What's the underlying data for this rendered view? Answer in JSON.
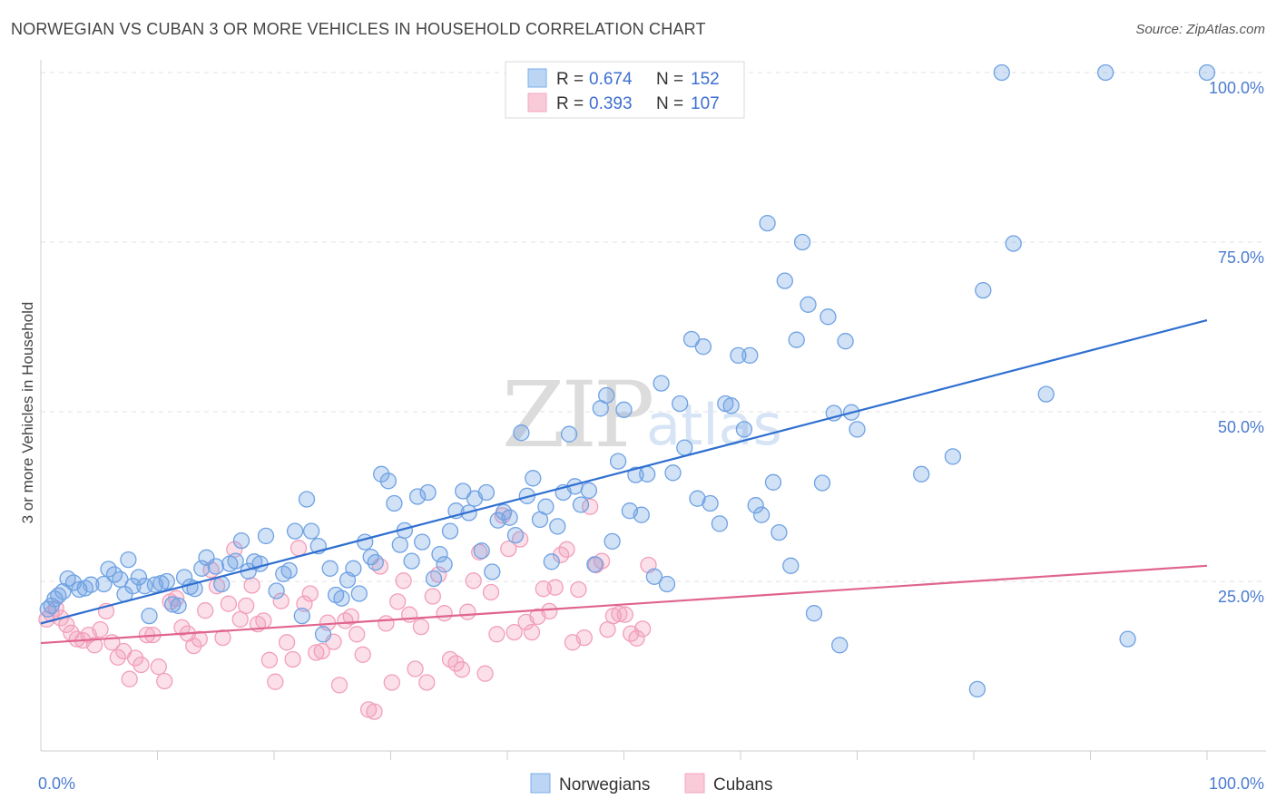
{
  "header": {
    "title": "NORWEGIAN VS CUBAN 3 OR MORE VEHICLES IN HOUSEHOLD CORRELATION CHART",
    "source": "Source: ZipAtlas.com"
  },
  "watermark": {
    "zip": "ZIP",
    "atlas": "atlas"
  },
  "legend": {
    "rows": [
      {
        "r_label": "R =",
        "r_value": "0.674",
        "n_label": "N =",
        "n_value": "152",
        "color": "#7aaee8"
      },
      {
        "r_label": "R =",
        "r_value": "0.393",
        "n_label": "N =",
        "n_value": "107",
        "color": "#f4a6bf"
      }
    ]
  },
  "bottom_legend": [
    {
      "label": "Norwegians",
      "color": "#7aaee8"
    },
    {
      "label": "Cubans",
      "color": "#f4a6bf"
    }
  ],
  "chart_data": {
    "type": "scatter",
    "title": "NORWEGIAN VS CUBAN 3 OR MORE VEHICLES IN HOUSEHOLD CORRELATION CHART",
    "xlabel": "",
    "ylabel": "3 or more Vehicles in Household",
    "xlim": [
      0,
      100
    ],
    "ylim": [
      0,
      100
    ],
    "x_tick_labels": [
      "0.0%",
      "100.0%"
    ],
    "y_ticks": [
      25,
      50,
      75,
      100
    ],
    "y_tick_labels": [
      "25.0%",
      "50.0%",
      "75.0%",
      "100.0%"
    ],
    "grid": true,
    "series": [
      {
        "name": "Norwegians",
        "color": "#6fa2e3",
        "line_color": "#2f6fd0",
        "trend": [
          [
            0,
            18.8
          ],
          [
            100,
            63.5
          ]
        ],
        "points": [
          [
            0.6,
            20.9
          ],
          [
            0.9,
            21.4
          ],
          [
            1.2,
            22.4
          ],
          [
            1.5,
            22.9
          ],
          [
            1.9,
            23.5
          ],
          [
            2.3,
            25.4
          ],
          [
            2.8,
            24.8
          ],
          [
            3.3,
            23.8
          ],
          [
            3.8,
            24.0
          ],
          [
            4.3,
            24.5
          ],
          [
            5.4,
            24.6
          ],
          [
            5.8,
            26.8
          ],
          [
            6.3,
            26.0
          ],
          [
            6.8,
            25.3
          ],
          [
            7.2,
            23.1
          ],
          [
            7.5,
            28.2
          ],
          [
            7.9,
            24.3
          ],
          [
            8.4,
            25.6
          ],
          [
            8.9,
            24.3
          ],
          [
            9.3,
            19.9
          ],
          [
            9.8,
            24.5
          ],
          [
            10.3,
            24.7
          ],
          [
            10.8,
            25.0
          ],
          [
            11.3,
            21.6
          ],
          [
            11.8,
            21.4
          ],
          [
            12.3,
            25.6
          ],
          [
            12.8,
            24.2
          ],
          [
            13.2,
            23.9
          ],
          [
            13.8,
            26.9
          ],
          [
            14.2,
            28.5
          ],
          [
            15.0,
            27.2
          ],
          [
            15.5,
            24.6
          ],
          [
            16.2,
            27.6
          ],
          [
            16.7,
            28.0
          ],
          [
            17.2,
            31.0
          ],
          [
            17.8,
            26.5
          ],
          [
            18.3,
            27.9
          ],
          [
            18.8,
            27.6
          ],
          [
            19.3,
            31.7
          ],
          [
            20.2,
            23.6
          ],
          [
            20.8,
            26.1
          ],
          [
            21.3,
            26.6
          ],
          [
            21.8,
            32.4
          ],
          [
            22.4,
            19.9
          ],
          [
            22.8,
            37.1
          ],
          [
            23.2,
            32.4
          ],
          [
            23.8,
            30.2
          ],
          [
            24.2,
            17.2
          ],
          [
            24.8,
            26.9
          ],
          [
            25.3,
            23.0
          ],
          [
            25.8,
            22.5
          ],
          [
            26.3,
            25.2
          ],
          [
            26.8,
            26.9
          ],
          [
            27.3,
            23.2
          ],
          [
            27.8,
            30.8
          ],
          [
            28.3,
            28.6
          ],
          [
            28.7,
            27.8
          ],
          [
            29.2,
            40.8
          ],
          [
            29.8,
            39.8
          ],
          [
            30.3,
            36.5
          ],
          [
            30.8,
            30.4
          ],
          [
            31.2,
            32.5
          ],
          [
            31.8,
            28.0
          ],
          [
            32.3,
            37.5
          ],
          [
            32.7,
            30.8
          ],
          [
            33.2,
            38.1
          ],
          [
            33.7,
            25.4
          ],
          [
            34.2,
            29.0
          ],
          [
            34.6,
            27.5
          ],
          [
            35.1,
            32.4
          ],
          [
            35.6,
            35.4
          ],
          [
            36.2,
            38.3
          ],
          [
            36.7,
            35.1
          ],
          [
            37.2,
            37.2
          ],
          [
            37.8,
            29.5
          ],
          [
            38.2,
            38.1
          ],
          [
            38.7,
            26.4
          ],
          [
            39.2,
            34.0
          ],
          [
            39.7,
            35.2
          ],
          [
            40.2,
            34.4
          ],
          [
            40.7,
            31.8
          ],
          [
            41.2,
            46.9
          ],
          [
            41.7,
            37.6
          ],
          [
            42.2,
            40.2
          ],
          [
            42.8,
            34.1
          ],
          [
            43.3,
            36.0
          ],
          [
            43.8,
            27.9
          ],
          [
            44.3,
            33.1
          ],
          [
            44.8,
            38.1
          ],
          [
            45.3,
            46.7
          ],
          [
            45.8,
            39.0
          ],
          [
            46.3,
            36.3
          ],
          [
            47.0,
            38.4
          ],
          [
            47.5,
            27.5
          ],
          [
            48.0,
            50.5
          ],
          [
            48.5,
            52.4
          ],
          [
            49.0,
            30.9
          ],
          [
            49.5,
            42.7
          ],
          [
            50.0,
            50.3
          ],
          [
            50.5,
            35.4
          ],
          [
            51.0,
            40.7
          ],
          [
            51.5,
            34.8
          ],
          [
            52.0,
            40.8
          ],
          [
            52.6,
            25.7
          ],
          [
            53.2,
            54.2
          ],
          [
            53.7,
            24.6
          ],
          [
            54.2,
            41.0
          ],
          [
            54.8,
            51.2
          ],
          [
            55.2,
            44.7
          ],
          [
            55.8,
            60.7
          ],
          [
            56.3,
            37.2
          ],
          [
            56.8,
            59.6
          ],
          [
            57.4,
            36.5
          ],
          [
            58.2,
            33.5
          ],
          [
            58.7,
            51.2
          ],
          [
            59.2,
            50.9
          ],
          [
            59.8,
            58.3
          ],
          [
            60.3,
            47.4
          ],
          [
            60.8,
            58.3
          ],
          [
            61.3,
            36.2
          ],
          [
            61.8,
            34.8
          ],
          [
            62.3,
            77.8
          ],
          [
            62.8,
            39.6
          ],
          [
            63.3,
            32.2
          ],
          [
            63.8,
            69.3
          ],
          [
            64.3,
            27.3
          ],
          [
            64.8,
            60.6
          ],
          [
            65.3,
            75.0
          ],
          [
            65.8,
            65.8
          ],
          [
            66.3,
            20.3
          ],
          [
            67.0,
            39.5
          ],
          [
            67.5,
            64.0
          ],
          [
            68.0,
            49.8
          ],
          [
            68.5,
            15.6
          ],
          [
            69.0,
            60.4
          ],
          [
            69.5,
            49.9
          ],
          [
            70.0,
            47.4
          ],
          [
            75.5,
            40.8
          ],
          [
            78.2,
            43.4
          ],
          [
            80.3,
            9.1
          ],
          [
            80.8,
            67.9
          ],
          [
            82.4,
            100.0
          ],
          [
            83.4,
            74.8
          ],
          [
            86.2,
            52.6
          ],
          [
            91.3,
            100.0
          ],
          [
            93.2,
            16.5
          ],
          [
            100.0,
            100.0
          ]
        ]
      },
      {
        "name": "Cubans",
        "color": "#f29fba",
        "line_color": "#e0648f",
        "trend": [
          [
            0,
            15.9
          ],
          [
            100,
            27.3
          ]
        ],
        "points": [
          [
            0.5,
            19.4
          ],
          [
            0.9,
            20.2
          ],
          [
            1.3,
            21.0
          ],
          [
            1.7,
            19.6
          ],
          [
            2.2,
            18.6
          ],
          [
            2.6,
            17.4
          ],
          [
            3.1,
            16.5
          ],
          [
            3.6,
            16.3
          ],
          [
            4.1,
            17.1
          ],
          [
            4.6,
            15.6
          ],
          [
            5.1,
            17.9
          ],
          [
            5.6,
            20.6
          ],
          [
            6.1,
            16.0
          ],
          [
            6.6,
            13.8
          ],
          [
            7.1,
            14.7
          ],
          [
            7.6,
            10.6
          ],
          [
            8.1,
            13.7
          ],
          [
            8.6,
            12.7
          ],
          [
            9.1,
            17.1
          ],
          [
            9.6,
            17.1
          ],
          [
            10.1,
            12.4
          ],
          [
            10.6,
            10.3
          ],
          [
            11.1,
            22.0
          ],
          [
            11.6,
            22.5
          ],
          [
            12.1,
            18.2
          ],
          [
            12.6,
            17.3
          ],
          [
            13.1,
            15.5
          ],
          [
            13.6,
            16.5
          ],
          [
            14.1,
            20.7
          ],
          [
            14.6,
            26.7
          ],
          [
            15.1,
            24.3
          ],
          [
            15.6,
            16.7
          ],
          [
            16.1,
            21.7
          ],
          [
            16.6,
            29.7
          ],
          [
            17.1,
            19.4
          ],
          [
            17.6,
            21.4
          ],
          [
            18.1,
            24.4
          ],
          [
            18.6,
            18.7
          ],
          [
            19.1,
            19.2
          ],
          [
            19.6,
            13.4
          ],
          [
            20.1,
            10.2
          ],
          [
            20.6,
            22.1
          ],
          [
            21.1,
            16.0
          ],
          [
            21.6,
            13.5
          ],
          [
            22.1,
            29.9
          ],
          [
            22.6,
            21.7
          ],
          [
            23.1,
            23.2
          ],
          [
            23.6,
            14.5
          ],
          [
            24.1,
            14.7
          ],
          [
            24.6,
            18.9
          ],
          [
            25.1,
            16.1
          ],
          [
            25.6,
            9.7
          ],
          [
            26.1,
            19.2
          ],
          [
            26.6,
            19.8
          ],
          [
            27.1,
            17.2
          ],
          [
            27.6,
            14.2
          ],
          [
            28.1,
            6.1
          ],
          [
            28.6,
            5.8
          ],
          [
            29.1,
            27.2
          ],
          [
            29.6,
            18.8
          ],
          [
            30.1,
            10.1
          ],
          [
            30.6,
            22.0
          ],
          [
            31.1,
            25.1
          ],
          [
            31.6,
            20.1
          ],
          [
            32.1,
            12.1
          ],
          [
            32.6,
            18.3
          ],
          [
            33.1,
            10.1
          ],
          [
            33.6,
            22.8
          ],
          [
            34.1,
            26.0
          ],
          [
            34.6,
            20.3
          ],
          [
            35.1,
            13.5
          ],
          [
            35.6,
            12.9
          ],
          [
            36.1,
            12.0
          ],
          [
            36.6,
            20.5
          ],
          [
            37.1,
            25.1
          ],
          [
            37.6,
            29.3
          ],
          [
            38.1,
            11.4
          ],
          [
            38.6,
            23.4
          ],
          [
            39.1,
            17.2
          ],
          [
            39.6,
            34.7
          ],
          [
            40.1,
            29.8
          ],
          [
            40.6,
            17.5
          ],
          [
            41.1,
            31.2
          ],
          [
            41.6,
            19.0
          ],
          [
            42.1,
            17.5
          ],
          [
            42.6,
            19.8
          ],
          [
            43.1,
            23.9
          ],
          [
            43.6,
            20.6
          ],
          [
            44.1,
            24.1
          ],
          [
            44.6,
            28.9
          ],
          [
            45.1,
            29.7
          ],
          [
            45.6,
            16.0
          ],
          [
            46.1,
            23.8
          ],
          [
            46.6,
            16.7
          ],
          [
            47.1,
            36.0
          ],
          [
            47.6,
            27.4
          ],
          [
            48.1,
            28.0
          ],
          [
            48.6,
            17.9
          ],
          [
            49.1,
            19.9
          ],
          [
            49.6,
            20.2
          ],
          [
            50.1,
            20.1
          ],
          [
            50.6,
            17.3
          ],
          [
            51.1,
            16.6
          ],
          [
            51.6,
            18.0
          ],
          [
            52.1,
            27.4
          ]
        ]
      }
    ]
  }
}
